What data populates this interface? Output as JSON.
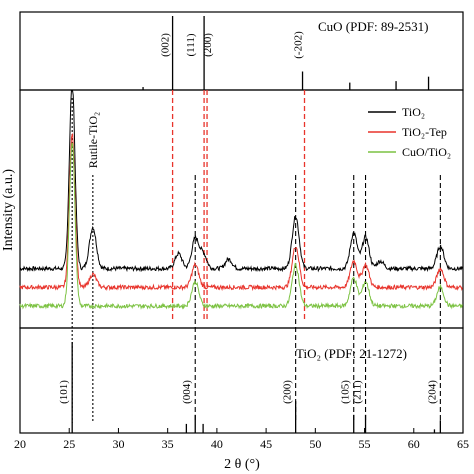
{
  "chart_data": [
    {
      "type": "bar",
      "panel": "reference-top",
      "title": "CuO (PDF: 89-2531)",
      "x": [
        32.5,
        35.5,
        38.7,
        48.7,
        53.5,
        58.2,
        61.5
      ],
      "values": [
        4,
        100,
        100,
        25,
        10,
        12,
        18
      ],
      "labels": [
        {
          "x": 35.5,
          "text": "(002)"
        },
        {
          "x": 38.1,
          "text": "(111)"
        },
        {
          "x": 39.8,
          "text": "(200)"
        },
        {
          "x": 49.0,
          "text": "(-202)"
        }
      ],
      "xlim": [
        20,
        65
      ]
    },
    {
      "type": "line",
      "panel": "samples-middle",
      "ylabel": "Intensity (a.u.)",
      "annotation": {
        "x": 27.4,
        "text": "Rutile-TiO₂"
      },
      "series": [
        {
          "name": "TiO₂",
          "color": "#000000",
          "offset": 0.2,
          "peaks": [
            [
              25.3,
              1.0
            ],
            [
              27.4,
              0.22
            ],
            [
              36.1,
              0.08
            ],
            [
              37.8,
              0.16
            ],
            [
              38.6,
              0.08
            ],
            [
              41.2,
              0.05
            ],
            [
              48.0,
              0.28
            ],
            [
              53.9,
              0.19
            ],
            [
              55.1,
              0.17
            ],
            [
              56.6,
              0.04
            ],
            [
              62.7,
              0.12
            ]
          ]
        },
        {
          "name": "TiO₂-Tep",
          "color": "#e8342c",
          "offset": 0.1,
          "peaks": [
            [
              25.3,
              0.82
            ],
            [
              27.4,
              0.07
            ],
            [
              37.8,
              0.12
            ],
            [
              48.0,
              0.22
            ],
            [
              53.9,
              0.14
            ],
            [
              55.1,
              0.12
            ],
            [
              62.7,
              0.1
            ]
          ]
        },
        {
          "name": "CuO/TiO₂",
          "color": "#7cc242",
          "offset": 0.0,
          "peaks": [
            [
              25.3,
              0.88
            ],
            [
              37.8,
              0.13
            ],
            [
              48.0,
              0.22
            ],
            [
              53.9,
              0.15
            ],
            [
              55.1,
              0.13
            ],
            [
              62.7,
              0.1
            ]
          ]
        }
      ],
      "legend_position": "top-right",
      "red_dashed_refs": [
        35.5,
        38.7,
        39.0,
        48.9
      ],
      "black_dashed_refs": [
        25.3,
        27.4,
        37.8,
        48.0,
        53.9,
        55.1,
        62.7
      ]
    },
    {
      "type": "bar",
      "panel": "reference-bottom",
      "title": "TiO₂ (PDF: 21-1272)",
      "x": [
        25.3,
        36.9,
        37.8,
        38.6,
        48.0,
        53.9,
        55.1,
        62.1,
        62.7
      ],
      "values": [
        100,
        10,
        20,
        10,
        35,
        20,
        20,
        4,
        14
      ],
      "labels": [
        {
          "x": 25.3,
          "text": "(101)"
        },
        {
          "x": 37.8,
          "text": "(004)"
        },
        {
          "x": 48.0,
          "text": "(200)"
        },
        {
          "x": 53.9,
          "text": "(105)"
        },
        {
          "x": 55.1,
          "text": "(211)"
        },
        {
          "x": 62.7,
          "text": "(204)"
        }
      ],
      "xlabel": "2 θ (°)",
      "xlim": [
        20,
        65
      ],
      "xticks": [
        20,
        25,
        30,
        35,
        40,
        45,
        50,
        55,
        60,
        65
      ]
    }
  ]
}
